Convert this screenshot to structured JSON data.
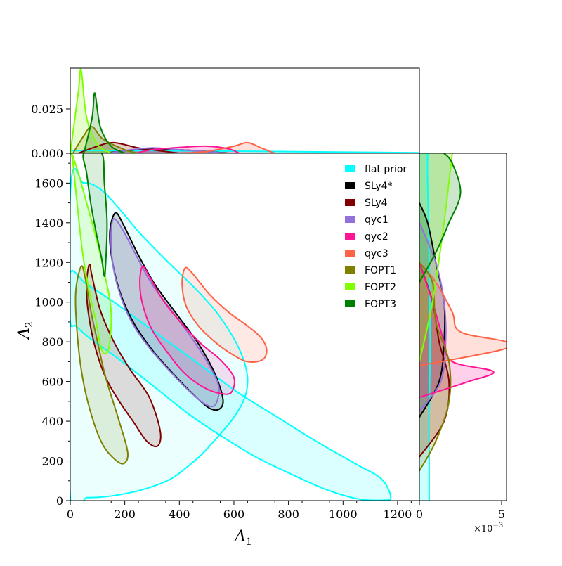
{
  "chart_data": {
    "type": "scatter",
    "variant": "corner plot: 2D density contours with marginal densities",
    "xlabel": "Λ",
    "xlabel_sub": "1",
    "ylabel": "Λ",
    "ylabel_sub": "2",
    "xlim": [
      0,
      1280
    ],
    "ylim": [
      0,
      1750
    ],
    "x_ticks": [
      0,
      200,
      400,
      600,
      800,
      1000,
      1200
    ],
    "y_ticks": [
      0,
      200,
      400,
      600,
      800,
      1000,
      1200,
      1400,
      1600
    ],
    "top_marginal": {
      "ylim": [
        0,
        0.048
      ],
      "y_ticks": [
        "0.000",
        "0.025"
      ]
    },
    "right_marginal": {
      "xlim": [
        0,
        0.0053
      ],
      "x_ticks": [
        "0",
        "5"
      ],
      "scale_label": "×10",
      "scale_exp": "−3"
    },
    "legend_position": "top-right",
    "series": [
      {
        "name": "flat prior",
        "color": "#00ffff",
        "contour": [
          [
            0,
            1150
          ],
          [
            60,
            1090
          ],
          [
            150,
            1010
          ],
          [
            260,
            900
          ],
          [
            380,
            780
          ],
          [
            500,
            660
          ],
          [
            620,
            540
          ],
          [
            760,
            420
          ],
          [
            900,
            300
          ],
          [
            1040,
            190
          ],
          [
            1140,
            110
          ],
          [
            1175,
            20
          ],
          [
            1150,
            2
          ],
          [
            1050,
            10
          ],
          [
            930,
            60
          ],
          [
            800,
            140
          ],
          [
            680,
            220
          ],
          [
            560,
            320
          ],
          [
            440,
            430
          ],
          [
            320,
            560
          ],
          [
            200,
            690
          ],
          [
            120,
            770
          ],
          [
            60,
            830
          ],
          [
            20,
            880
          ],
          [
            0,
            900
          ]
        ],
        "contour2": [
          [
            0,
            1540
          ],
          [
            50,
            1600
          ],
          [
            110,
            1570
          ],
          [
            180,
            1470
          ],
          [
            260,
            1340
          ],
          [
            360,
            1200
          ],
          [
            450,
            1080
          ],
          [
            530,
            960
          ],
          [
            590,
            840
          ],
          [
            630,
            730
          ],
          [
            650,
            620
          ],
          [
            640,
            520
          ],
          [
            600,
            420
          ],
          [
            540,
            320
          ],
          [
            480,
            230
          ],
          [
            420,
            160
          ],
          [
            370,
            110
          ],
          [
            300,
            70
          ],
          [
            220,
            40
          ],
          [
            130,
            20
          ],
          [
            60,
            15
          ],
          [
            0,
            20
          ]
        ],
        "top_density": [
          [
            0,
            0.0015
          ],
          [
            300,
            0.0015
          ],
          [
            600,
            0.0012
          ],
          [
            900,
            0.0008
          ],
          [
            1200,
            0.0004
          ],
          [
            1280,
            0.0003
          ]
        ],
        "right_density": [
          [
            0,
            0.0006
          ],
          [
            400,
            0.0006
          ],
          [
            800,
            0.00065
          ],
          [
            1200,
            0.0006
          ],
          [
            1600,
            0.0005
          ],
          [
            1750,
            0.0005
          ]
        ]
      },
      {
        "name": "SLy4*",
        "color": "#000000",
        "contour": [
          [
            165,
            1450
          ],
          [
            195,
            1390
          ],
          [
            245,
            1250
          ],
          [
            310,
            1090
          ],
          [
            390,
            940
          ],
          [
            470,
            790
          ],
          [
            530,
            640
          ],
          [
            560,
            510
          ],
          [
            545,
            460
          ],
          [
            505,
            470
          ],
          [
            440,
            550
          ],
          [
            370,
            650
          ],
          [
            300,
            760
          ],
          [
            235,
            890
          ],
          [
            185,
            1040
          ],
          [
            155,
            1200
          ],
          [
            145,
            1350
          ]
        ],
        "top_density": [
          [
            130,
            0
          ],
          [
            200,
            0.0015
          ],
          [
            300,
            0.0025
          ],
          [
            400,
            0.002
          ],
          [
            500,
            0.001
          ],
          [
            580,
            0
          ]
        ],
        "right_density": [
          [
            420,
            0
          ],
          [
            600,
            0.0012
          ],
          [
            800,
            0.0015
          ],
          [
            1000,
            0.0015
          ],
          [
            1200,
            0.001
          ],
          [
            1400,
            0.0005
          ],
          [
            1500,
            0
          ]
        ]
      },
      {
        "name": "SLy4",
        "color": "#800000",
        "contour": [
          [
            70,
            1190
          ],
          [
            80,
            1130
          ],
          [
            110,
            960
          ],
          [
            160,
            800
          ],
          [
            220,
            660
          ],
          [
            290,
            520
          ],
          [
            330,
            350
          ],
          [
            320,
            275
          ],
          [
            280,
            300
          ],
          [
            230,
            400
          ],
          [
            180,
            500
          ],
          [
            130,
            620
          ],
          [
            90,
            780
          ],
          [
            65,
            960
          ],
          [
            60,
            1100
          ]
        ],
        "top_density": [
          [
            30,
            0
          ],
          [
            100,
            0.004
          ],
          [
            160,
            0.006
          ],
          [
            250,
            0.003
          ],
          [
            350,
            0.001
          ],
          [
            400,
            0
          ]
        ],
        "right_density": [
          [
            220,
            0
          ],
          [
            400,
            0.0015
          ],
          [
            600,
            0.0018
          ],
          [
            800,
            0.0012
          ],
          [
            1000,
            0.0008
          ],
          [
            1200,
            0
          ]
        ]
      },
      {
        "name": "qyc1",
        "color": "#9370db",
        "contour": [
          [
            160,
            1420
          ],
          [
            190,
            1370
          ],
          [
            240,
            1240
          ],
          [
            300,
            1090
          ],
          [
            375,
            950
          ],
          [
            450,
            810
          ],
          [
            510,
            680
          ],
          [
            545,
            570
          ],
          [
            530,
            480
          ],
          [
            490,
            490
          ],
          [
            430,
            560
          ],
          [
            360,
            660
          ],
          [
            290,
            770
          ],
          [
            225,
            900
          ],
          [
            180,
            1050
          ],
          [
            155,
            1200
          ],
          [
            150,
            1350
          ]
        ],
        "top_density": [
          [
            140,
            0
          ],
          [
            200,
            0.0015
          ],
          [
            300,
            0.003
          ],
          [
            400,
            0.002
          ],
          [
            500,
            0.001
          ],
          [
            570,
            0
          ]
        ],
        "right_density": [
          [
            450,
            0
          ],
          [
            600,
            0.0013
          ],
          [
            800,
            0.0016
          ],
          [
            1000,
            0.0015
          ],
          [
            1200,
            0.001
          ],
          [
            1400,
            0
          ]
        ]
      },
      {
        "name": "qyc2",
        "color": "#ff1493",
        "contour": [
          [
            265,
            1180
          ],
          [
            290,
            1130
          ],
          [
            340,
            1010
          ],
          [
            410,
            890
          ],
          [
            480,
            790
          ],
          [
            550,
            710
          ],
          [
            600,
            620
          ],
          [
            590,
            545
          ],
          [
            550,
            540
          ],
          [
            490,
            570
          ],
          [
            420,
            640
          ],
          [
            360,
            740
          ],
          [
            300,
            860
          ],
          [
            265,
            990
          ],
          [
            255,
            1100
          ]
        ],
        "top_density": [
          [
            240,
            0
          ],
          [
            300,
            0.002
          ],
          [
            420,
            0.0035
          ],
          [
            500,
            0.004
          ],
          [
            580,
            0.0025
          ],
          [
            620,
            0
          ]
        ],
        "right_density": [
          [
            520,
            0
          ],
          [
            600,
            0.003
          ],
          [
            650,
            0.0045
          ],
          [
            700,
            0.002
          ],
          [
            800,
            0.0015
          ],
          [
            1000,
            0.0008
          ],
          [
            1200,
            0
          ]
        ]
      },
      {
        "name": "qyc3",
        "color": "#ff6347",
        "contour": [
          [
            420,
            1170
          ],
          [
            445,
            1150
          ],
          [
            510,
            1040
          ],
          [
            580,
            950
          ],
          [
            650,
            880
          ],
          [
            700,
            820
          ],
          [
            720,
            760
          ],
          [
            705,
            710
          ],
          [
            650,
            700
          ],
          [
            590,
            740
          ],
          [
            530,
            800
          ],
          [
            470,
            880
          ],
          [
            425,
            980
          ],
          [
            410,
            1090
          ]
        ],
        "top_density": [
          [
            400,
            0
          ],
          [
            500,
            0.001
          ],
          [
            600,
            0.004
          ],
          [
            650,
            0.006
          ],
          [
            700,
            0.003
          ],
          [
            750,
            0
          ]
        ],
        "right_density": [
          [
            680,
            0
          ],
          [
            760,
            0.005
          ],
          [
            800,
            0.0053
          ],
          [
            850,
            0.0025
          ],
          [
            950,
            0.002
          ],
          [
            1100,
            0.001
          ],
          [
            1200,
            0
          ]
        ]
      },
      {
        "name": "FOPT1",
        "color": "#808000",
        "contour": [
          [
            40,
            1180
          ],
          [
            55,
            1120
          ],
          [
            75,
            960
          ],
          [
            100,
            800
          ],
          [
            130,
            620
          ],
          [
            175,
            420
          ],
          [
            210,
            250
          ],
          [
            200,
            190
          ],
          [
            170,
            200
          ],
          [
            120,
            280
          ],
          [
            80,
            420
          ],
          [
            45,
            620
          ],
          [
            25,
            850
          ],
          [
            20,
            1050
          ]
        ],
        "top_density": [
          [
            10,
            0
          ],
          [
            50,
            0.01
          ],
          [
            80,
            0.015
          ],
          [
            120,
            0.008
          ],
          [
            200,
            0.002
          ],
          [
            250,
            0
          ]
        ],
        "right_density": [
          [
            150,
            0
          ],
          [
            300,
            0.001
          ],
          [
            500,
            0.0018
          ],
          [
            700,
            0.0018
          ],
          [
            900,
            0.001
          ],
          [
            1100,
            0.0008
          ],
          [
            1200,
            0
          ]
        ]
      },
      {
        "name": "FOPT2",
        "color": "#7fff00",
        "contour": [
          [
            5,
            1750
          ],
          [
            30,
            1650
          ],
          [
            60,
            1500
          ],
          [
            90,
            1350
          ],
          [
            125,
            1150
          ],
          [
            150,
            950
          ],
          [
            140,
            760
          ],
          [
            115,
            760
          ],
          [
            95,
            900
          ],
          [
            70,
            1050
          ],
          [
            45,
            1250
          ],
          [
            25,
            1500
          ],
          [
            10,
            1700
          ]
        ],
        "top_density": [
          [
            0,
            0
          ],
          [
            30,
            0.035
          ],
          [
            40,
            0.047
          ],
          [
            60,
            0.02
          ],
          [
            100,
            0.005
          ],
          [
            150,
            0
          ]
        ],
        "right_density": [
          [
            700,
            0
          ],
          [
            1000,
            0.0008
          ],
          [
            1400,
            0.0015
          ],
          [
            1750,
            0.002
          ]
        ]
      },
      {
        "name": "FOPT3",
        "color": "#008000",
        "contour": [
          [
            50,
            1750
          ],
          [
            60,
            1650
          ],
          [
            75,
            1500
          ],
          [
            95,
            1350
          ],
          [
            115,
            1220
          ],
          [
            125,
            1130
          ],
          [
            130,
            1200
          ],
          [
            135,
            1400
          ],
          [
            125,
            1600
          ],
          [
            115,
            1750
          ]
        ],
        "top_density": [
          [
            50,
            0
          ],
          [
            80,
            0.02
          ],
          [
            90,
            0.034
          ],
          [
            110,
            0.015
          ],
          [
            150,
            0.004
          ],
          [
            200,
            0
          ]
        ],
        "right_density": [
          [
            1100,
            0
          ],
          [
            1250,
            0.001
          ],
          [
            1400,
            0.0018
          ],
          [
            1550,
            0.0025
          ],
          [
            1700,
            0.002
          ],
          [
            1750,
            0.0015
          ]
        ]
      }
    ]
  }
}
